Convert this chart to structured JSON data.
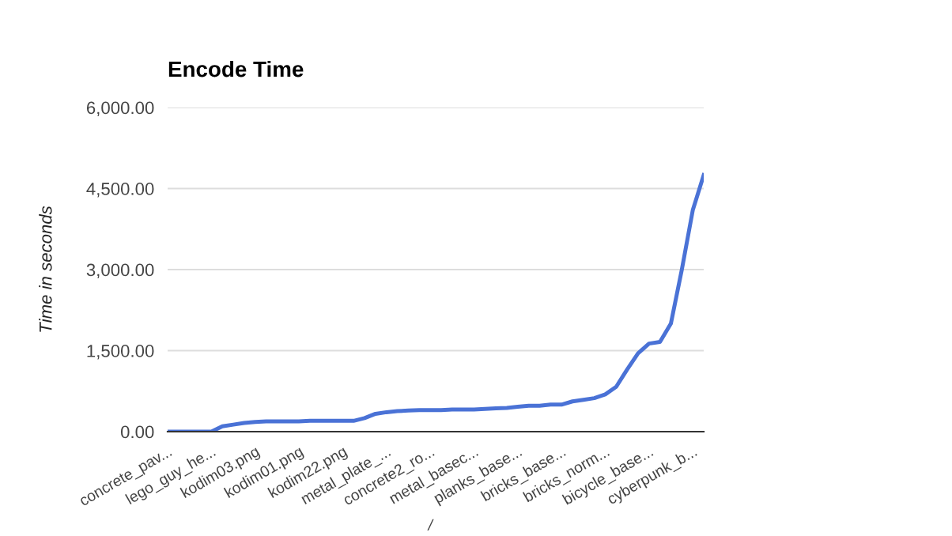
{
  "chart_data": {
    "type": "line",
    "title": "Encode Time",
    "ylabel": "Time in seconds",
    "xlabel": "/",
    "categories": [
      "concrete_pav...",
      null,
      null,
      null,
      "lego_guy_he...",
      null,
      null,
      null,
      "kodim03.png",
      null,
      null,
      null,
      "kodim01.png",
      null,
      null,
      null,
      "kodim22.png",
      null,
      null,
      null,
      "metal_plate_...",
      null,
      null,
      null,
      "concrete2_ro...",
      null,
      null,
      null,
      "metal_basec...",
      null,
      null,
      null,
      "planks_base...",
      null,
      null,
      null,
      "bricks_base...",
      null,
      null,
      null,
      "bricks_norm...",
      null,
      null,
      null,
      "bicycle_base...",
      null,
      null,
      null,
      "cyberpunk_b...",
      null
    ],
    "series": [
      {
        "color": "#4a72d6",
        "values": [
          0,
          0,
          0,
          0,
          0,
          100,
          130,
          160,
          180,
          190,
          190,
          190,
          190,
          200,
          200,
          200,
          200,
          200,
          250,
          330,
          360,
          380,
          390,
          400,
          400,
          400,
          410,
          410,
          410,
          420,
          430,
          440,
          460,
          480,
          480,
          500,
          500,
          560,
          590,
          620,
          690,
          830,
          1150,
          1450,
          1630,
          1660,
          2000,
          3000,
          4100,
          4750
        ]
      }
    ],
    "ylim": [
      0,
      6000
    ],
    "yticks": [
      {
        "value": 0,
        "label": "0.00"
      },
      {
        "value": 1500,
        "label": "1,500.00"
      },
      {
        "value": 3000,
        "label": "3,000.00"
      },
      {
        "value": 4500,
        "label": "4,500.00"
      },
      {
        "value": 6000,
        "label": "6,000.00"
      }
    ],
    "grid": "y",
    "marker": "none",
    "line_style": "solid"
  }
}
